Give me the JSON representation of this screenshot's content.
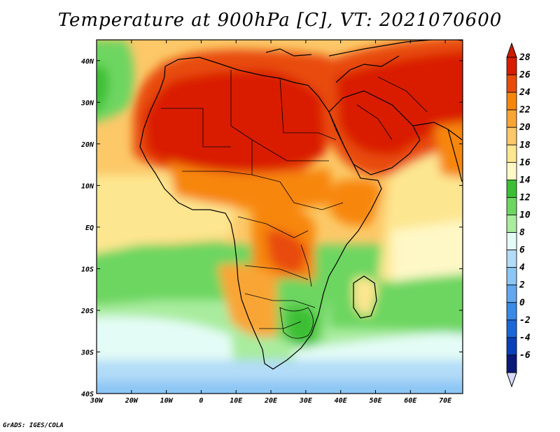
{
  "title": "Temperature at 900hPa [C], VT: 2021070600",
  "credit": "GrADS: IGES/COLA",
  "map": {
    "lon_range": [
      -30,
      75
    ],
    "lat_range": [
      -40,
      45
    ],
    "lon_ticks": [
      {
        "value": -30,
        "label": "30W"
      },
      {
        "value": -20,
        "label": "20W"
      },
      {
        "value": -10,
        "label": "10W"
      },
      {
        "value": 0,
        "label": "0"
      },
      {
        "value": 10,
        "label": "10E"
      },
      {
        "value": 20,
        "label": "20E"
      },
      {
        "value": 30,
        "label": "30E"
      },
      {
        "value": 40,
        "label": "40E"
      },
      {
        "value": 50,
        "label": "50E"
      },
      {
        "value": 60,
        "label": "60E"
      },
      {
        "value": 70,
        "label": "70E"
      }
    ],
    "lat_ticks": [
      {
        "value": 40,
        "label": "40N"
      },
      {
        "value": 30,
        "label": "30N"
      },
      {
        "value": 20,
        "label": "20N"
      },
      {
        "value": 10,
        "label": "10N"
      },
      {
        "value": 0,
        "label": "EQ"
      },
      {
        "value": -10,
        "label": "10S"
      },
      {
        "value": -20,
        "label": "20S"
      },
      {
        "value": -30,
        "label": "30S"
      },
      {
        "value": -40,
        "label": "40S"
      }
    ]
  },
  "colorbar": {
    "levels": [
      {
        "label": "28",
        "color": "#d91c00"
      },
      {
        "label": "26",
        "color": "#e84c0c"
      },
      {
        "label": "24",
        "color": "#f7860e"
      },
      {
        "label": "22",
        "color": "#f9a536"
      },
      {
        "label": "20",
        "color": "#fcc868"
      },
      {
        "label": "18",
        "color": "#fde690"
      },
      {
        "label": "16",
        "color": "#fef8c6"
      },
      {
        "label": "14",
        "color": "#3cbf36"
      },
      {
        "label": "12",
        "color": "#6dd660"
      },
      {
        "label": "10",
        "color": "#a9ec9e"
      },
      {
        "label": "8",
        "color": "#e4fcf6"
      },
      {
        "label": "6",
        "color": "#b2dcf8"
      },
      {
        "label": "4",
        "color": "#8cc6f4"
      },
      {
        "label": "2",
        "color": "#62a8ee"
      },
      {
        "label": "0",
        "color": "#3a8ae6"
      },
      {
        "label": "-2",
        "color": "#1a68d8"
      },
      {
        "label": "-4",
        "color": "#0a40b8"
      },
      {
        "label": "-6",
        "color": "#0a1a78"
      }
    ],
    "top_color": "#cc1c00",
    "bottom_color": "#d8d8fc"
  }
}
